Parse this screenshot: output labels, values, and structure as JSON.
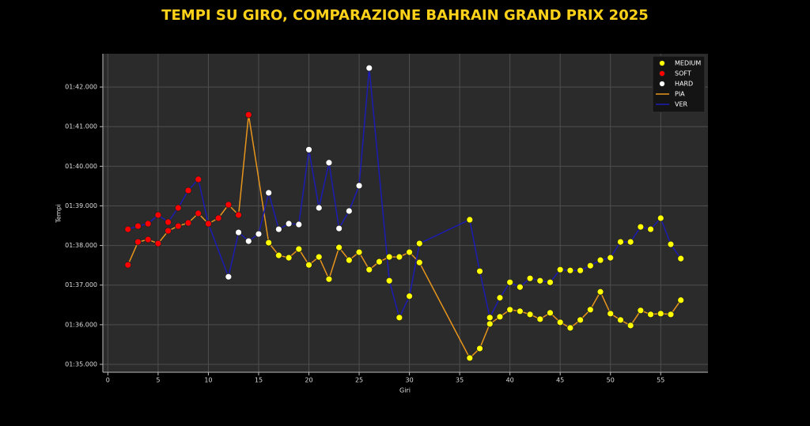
{
  "chart_data": {
    "type": "line",
    "title": "TEMPI SU GIRO, COMPARAZIONE BAHRAIN GRAND PRIX 2025",
    "x_label": "Giri",
    "y_label": "Tempi",
    "xlim": [
      -0.5,
      59.7
    ],
    "ylim": [
      94.8,
      102.84
    ],
    "xticks": [
      0,
      5,
      10,
      15,
      20,
      25,
      30,
      35,
      40,
      45,
      50,
      55
    ],
    "yticks": [
      {
        "value": 95,
        "label": "01:35.000"
      },
      {
        "value": 96,
        "label": "01:36.000"
      },
      {
        "value": 97,
        "label": "01:37.000"
      },
      {
        "value": 98,
        "label": "01:38.000"
      },
      {
        "value": 99,
        "label": "01:39.000"
      },
      {
        "value": 100,
        "label": "01:40.000"
      },
      {
        "value": 101,
        "label": "01:41.000"
      },
      {
        "value": 102,
        "label": "01:42.000"
      }
    ],
    "grid": true,
    "legend": "upper right",
    "compounds": [
      {
        "name": "MEDIUM",
        "color": "#ffff00"
      },
      {
        "name": "SOFT",
        "color": "#ff0000"
      },
      {
        "name": "HARD",
        "color": "#ffffff"
      }
    ],
    "series": [
      {
        "name": "PIA",
        "color": "#e8951c",
        "x": [
          2,
          3,
          4,
          5,
          6,
          7,
          8,
          9,
          10,
          11,
          12,
          13,
          14,
          16,
          17,
          18,
          19,
          20,
          21,
          22,
          23,
          24,
          25,
          26,
          27,
          28,
          29,
          30,
          31,
          36,
          37,
          38,
          39,
          40,
          41,
          42,
          43,
          44,
          45,
          46,
          47,
          48,
          49,
          50,
          51,
          52,
          53,
          54,
          55,
          56,
          57
        ],
        "values": [
          97.51,
          98.09,
          98.15,
          98.05,
          98.37,
          98.49,
          98.57,
          98.81,
          98.55,
          98.69,
          99.03,
          98.77,
          101.3,
          98.07,
          97.75,
          97.69,
          97.91,
          97.51,
          97.71,
          97.15,
          97.95,
          97.63,
          97.83,
          97.39,
          97.59,
          97.71,
          97.71,
          97.83,
          97.57,
          95.16,
          95.4,
          96.02,
          96.2,
          96.38,
          96.34,
          96.26,
          96.14,
          96.3,
          96.06,
          95.92,
          96.12,
          96.38,
          96.83,
          96.28,
          96.12,
          95.98,
          96.36,
          96.26,
          96.28,
          96.26,
          96.62
        ],
        "compound": [
          "SOFT",
          "SOFT",
          "SOFT",
          "SOFT",
          "SOFT",
          "SOFT",
          "SOFT",
          "SOFT",
          "SOFT",
          "SOFT",
          "SOFT",
          "SOFT",
          "SOFT",
          "MEDIUM",
          "MEDIUM",
          "MEDIUM",
          "MEDIUM",
          "MEDIUM",
          "MEDIUM",
          "MEDIUM",
          "MEDIUM",
          "MEDIUM",
          "MEDIUM",
          "MEDIUM",
          "MEDIUM",
          "MEDIUM",
          "MEDIUM",
          "MEDIUM",
          "MEDIUM",
          "MEDIUM",
          "MEDIUM",
          "MEDIUM",
          "MEDIUM",
          "MEDIUM",
          "MEDIUM",
          "MEDIUM",
          "MEDIUM",
          "MEDIUM",
          "MEDIUM",
          "MEDIUM",
          "MEDIUM",
          "MEDIUM",
          "MEDIUM",
          "MEDIUM",
          "MEDIUM",
          "MEDIUM",
          "MEDIUM",
          "MEDIUM",
          "MEDIUM",
          "MEDIUM",
          "MEDIUM"
        ]
      },
      {
        "name": "VER",
        "color": "#1c1cb4",
        "x": [
          2,
          3,
          4,
          5,
          6,
          7,
          8,
          9,
          10,
          12,
          13,
          14,
          15,
          16,
          17,
          18,
          19,
          20,
          21,
          22,
          23,
          24,
          25,
          26,
          28,
          29,
          30,
          31,
          36,
          37,
          38,
          39,
          40,
          41,
          42,
          43,
          44,
          45,
          46,
          47,
          48,
          49,
          50,
          51,
          52,
          53,
          54,
          55,
          56,
          57
        ],
        "values": [
          98.41,
          98.49,
          98.55,
          98.77,
          98.59,
          98.95,
          99.39,
          99.67,
          98.55,
          97.21,
          98.33,
          98.11,
          98.29,
          99.33,
          98.41,
          98.55,
          98.53,
          100.42,
          98.95,
          100.09,
          98.43,
          98.87,
          99.51,
          102.48,
          97.11,
          96.18,
          96.72,
          98.05,
          98.65,
          97.35,
          96.18,
          96.68,
          97.07,
          96.95,
          97.17,
          97.11,
          97.07,
          97.39,
          97.37,
          97.37,
          97.49,
          97.63,
          97.69,
          98.09,
          98.09,
          98.47,
          98.41,
          98.69,
          98.03,
          97.67
        ],
        "compound": [
          "SOFT",
          "SOFT",
          "SOFT",
          "SOFT",
          "SOFT",
          "SOFT",
          "SOFT",
          "SOFT",
          "SOFT",
          "HARD",
          "HARD",
          "HARD",
          "HARD",
          "HARD",
          "HARD",
          "HARD",
          "HARD",
          "HARD",
          "HARD",
          "HARD",
          "HARD",
          "HARD",
          "HARD",
          "HARD",
          "MEDIUM",
          "MEDIUM",
          "MEDIUM",
          "MEDIUM",
          "MEDIUM",
          "MEDIUM",
          "MEDIUM",
          "MEDIUM",
          "MEDIUM",
          "MEDIUM",
          "MEDIUM",
          "MEDIUM",
          "MEDIUM",
          "MEDIUM",
          "MEDIUM",
          "MEDIUM",
          "MEDIUM",
          "MEDIUM",
          "MEDIUM",
          "MEDIUM",
          "MEDIUM",
          "MEDIUM",
          "MEDIUM",
          "MEDIUM",
          "MEDIUM",
          "MEDIUM"
        ]
      }
    ]
  }
}
